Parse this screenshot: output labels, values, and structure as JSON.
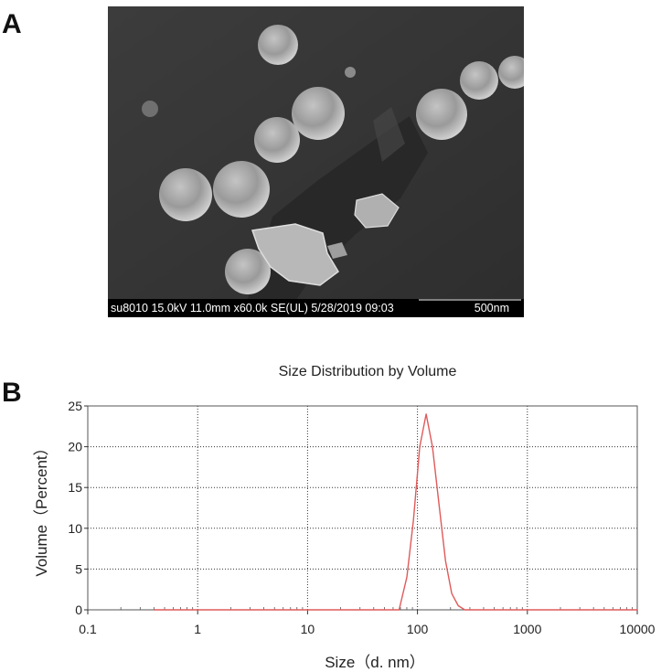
{
  "panels": {
    "a_label": "A",
    "b_label": "B"
  },
  "sem": {
    "info_text": "su8010 15.0kV 11.0mm x60.0k SE(UL) 5/28/2019 09:03",
    "scale_label": "500nm"
  },
  "chart_data": {
    "type": "line",
    "title": "Size Distribution by Volume",
    "xlabel": "Size（d. nm）",
    "ylabel": "Volume（Percent）",
    "x_scale": "log",
    "xlim": [
      0.1,
      10000
    ],
    "ylim": [
      0,
      25
    ],
    "x_ticks": [
      0.1,
      1,
      10,
      100,
      1000,
      10000
    ],
    "x_tick_labels": [
      "0.1",
      "1",
      "10",
      "100",
      "1000",
      "10000"
    ],
    "y_ticks": [
      0,
      5,
      10,
      15,
      20,
      25
    ],
    "y_tick_labels": [
      "0",
      "5",
      "10",
      "15",
      "20",
      "25"
    ],
    "grid": true,
    "series": [
      {
        "color": "#e05a5a",
        "x": [
          0.4,
          68,
          80,
          92,
          105,
          120,
          137,
          157,
          180,
          205,
          235,
          270,
          10000
        ],
        "y": [
          0,
          0,
          4,
          11,
          20,
          24,
          20,
          13,
          6,
          2,
          0.5,
          0,
          0
        ]
      }
    ]
  }
}
